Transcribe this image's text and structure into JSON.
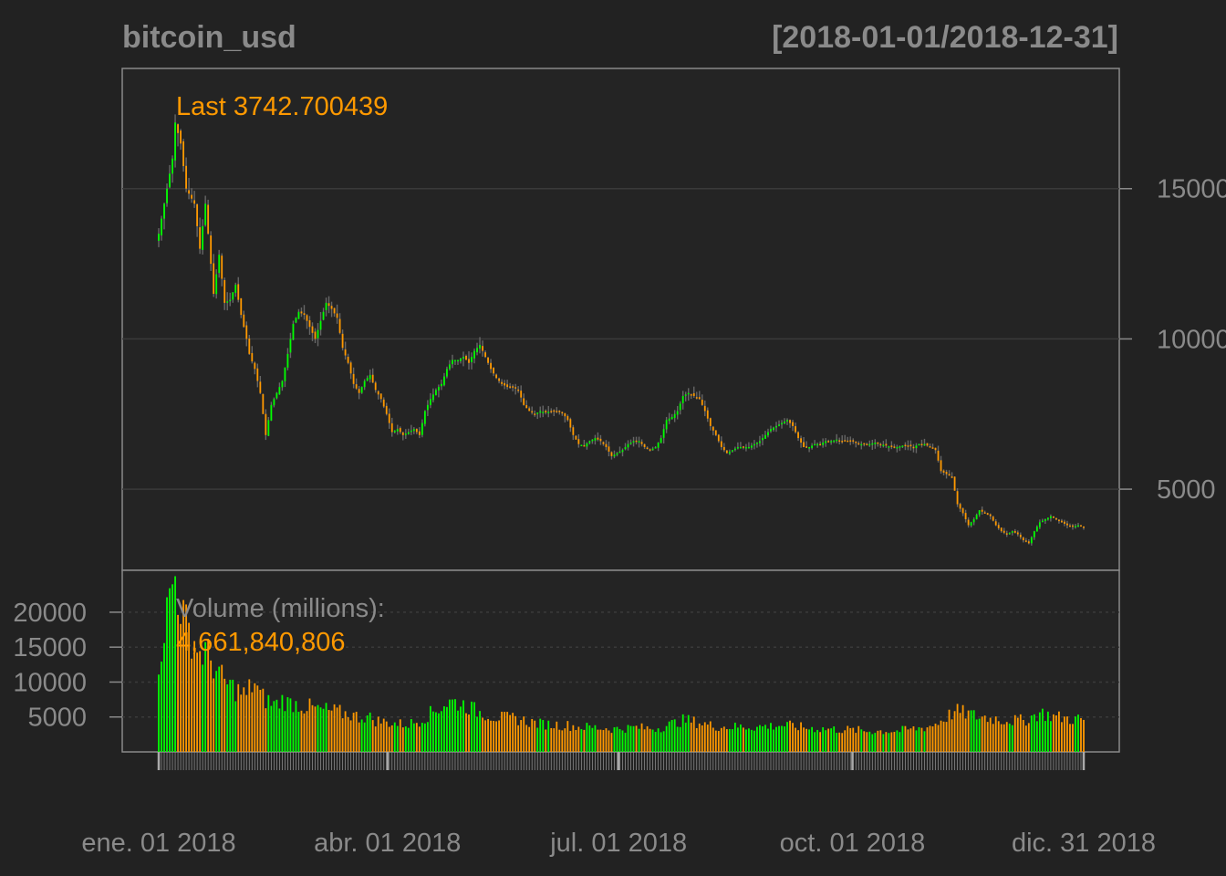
{
  "chart_data": {
    "type": "candlestick",
    "title": "bitcoin_usd",
    "date_range": "[2018-01-01/2018-12-31]",
    "last_label": "Last 3742.700439",
    "volume_title": "Volume (millions):",
    "volume_value": "4,661,840,806",
    "price_ylim": [
      2300,
      19000
    ],
    "volume_ylim": [
      0,
      26000
    ],
    "price_ticks": [
      "15000",
      "10000",
      "5000"
    ],
    "price_tick_values": [
      15000,
      10000,
      5000
    ],
    "volume_ticks": [
      "20000",
      "15000",
      "10000",
      "5000"
    ],
    "volume_tick_values": [
      20000,
      15000,
      10000,
      5000
    ],
    "x_tick_labels": [
      "ene. 01 2018",
      "abr. 01 2018",
      "jul. 01 2018",
      "oct. 01 2018",
      "dic. 31 2018"
    ],
    "x_tick_days": [
      0,
      90,
      181,
      273,
      364
    ],
    "up_color": "#00ff00",
    "down_color": "#ff9900",
    "grid": true,
    "price_anchors": [
      [
        0,
        13500
      ],
      [
        3,
        15000
      ],
      [
        5,
        16000
      ],
      [
        6,
        17200
      ],
      [
        8,
        16500
      ],
      [
        10,
        15000
      ],
      [
        13,
        14500
      ],
      [
        15,
        13000
      ],
      [
        17,
        14500
      ],
      [
        20,
        11500
      ],
      [
        22,
        12800
      ],
      [
        24,
        11200
      ],
      [
        26,
        11300
      ],
      [
        28,
        11800
      ],
      [
        30,
        10800
      ],
      [
        32,
        10000
      ],
      [
        33,
        9500
      ],
      [
        35,
        9000
      ],
      [
        37,
        8200
      ],
      [
        39,
        6800
      ],
      [
        41,
        7800
      ],
      [
        43,
        8200
      ],
      [
        45,
        8600
      ],
      [
        47,
        9500
      ],
      [
        49,
        10500
      ],
      [
        51,
        10900
      ],
      [
        53,
        10800
      ],
      [
        55,
        10400
      ],
      [
        57,
        10000
      ],
      [
        59,
        10600
      ],
      [
        61,
        11200
      ],
      [
        63,
        11000
      ],
      [
        65,
        10700
      ],
      [
        67,
        9700
      ],
      [
        69,
        9200
      ],
      [
        71,
        8500
      ],
      [
        73,
        8200
      ],
      [
        75,
        8600
      ],
      [
        77,
        8800
      ],
      [
        79,
        8300
      ],
      [
        81,
        8000
      ],
      [
        83,
        7500
      ],
      [
        85,
        6900
      ],
      [
        87,
        7000
      ],
      [
        89,
        6800
      ],
      [
        91,
        6900
      ],
      [
        93,
        7000
      ],
      [
        95,
        6800
      ],
      [
        97,
        7600
      ],
      [
        99,
        8000
      ],
      [
        101,
        8300
      ],
      [
        103,
        8500
      ],
      [
        105,
        9000
      ],
      [
        107,
        9300
      ],
      [
        109,
        9300
      ],
      [
        111,
        9400
      ],
      [
        113,
        9200
      ],
      [
        115,
        9600
      ],
      [
        117,
        9800
      ],
      [
        119,
        9400
      ],
      [
        121,
        9000
      ],
      [
        123,
        8700
      ],
      [
        125,
        8500
      ],
      [
        127,
        8400
      ],
      [
        129,
        8400
      ],
      [
        131,
        8300
      ],
      [
        133,
        7800
      ],
      [
        135,
        7600
      ],
      [
        137,
        7500
      ],
      [
        139,
        7600
      ],
      [
        141,
        7550
      ],
      [
        143,
        7600
      ],
      [
        145,
        7600
      ],
      [
        147,
        7550
      ],
      [
        149,
        7300
      ],
      [
        151,
        6800
      ],
      [
        153,
        6500
      ],
      [
        155,
        6450
      ],
      [
        157,
        6600
      ],
      [
        159,
        6700
      ],
      [
        161,
        6600
      ],
      [
        163,
        6400
      ],
      [
        165,
        6100
      ],
      [
        167,
        6200
      ],
      [
        169,
        6300
      ],
      [
        171,
        6500
      ],
      [
        173,
        6600
      ],
      [
        175,
        6600
      ],
      [
        177,
        6400
      ],
      [
        179,
        6300
      ],
      [
        181,
        6400
      ],
      [
        183,
        6700
      ],
      [
        185,
        7300
      ],
      [
        187,
        7400
      ],
      [
        189,
        7600
      ],
      [
        191,
        8100
      ],
      [
        193,
        8200
      ],
      [
        195,
        8100
      ],
      [
        197,
        8000
      ],
      [
        199,
        7600
      ],
      [
        201,
        7100
      ],
      [
        203,
        6800
      ],
      [
        205,
        6400
      ],
      [
        207,
        6200
      ],
      [
        209,
        6300
      ],
      [
        211,
        6400
      ],
      [
        213,
        6400
      ],
      [
        215,
        6400
      ],
      [
        217,
        6500
      ],
      [
        219,
        6600
      ],
      [
        221,
        6800
      ],
      [
        223,
        7000
      ],
      [
        225,
        7100
      ],
      [
        227,
        7200
      ],
      [
        229,
        7300
      ],
      [
        231,
        7100
      ],
      [
        233,
        6700
      ],
      [
        235,
        6400
      ],
      [
        237,
        6400
      ],
      [
        239,
        6500
      ],
      [
        241,
        6500
      ],
      [
        243,
        6600
      ],
      [
        245,
        6600
      ],
      [
        247,
        6650
      ],
      [
        249,
        6600
      ],
      [
        251,
        6600
      ],
      [
        253,
        6600
      ],
      [
        255,
        6500
      ],
      [
        257,
        6500
      ],
      [
        259,
        6500
      ],
      [
        261,
        6550
      ],
      [
        263,
        6500
      ],
      [
        265,
        6450
      ],
      [
        267,
        6400
      ],
      [
        269,
        6400
      ],
      [
        271,
        6450
      ],
      [
        273,
        6450
      ],
      [
        275,
        6400
      ],
      [
        277,
        6500
      ],
      [
        279,
        6500
      ],
      [
        281,
        6400
      ],
      [
        283,
        6300
      ],
      [
        285,
        5600
      ],
      [
        287,
        5500
      ],
      [
        289,
        5400
      ],
      [
        291,
        4500
      ],
      [
        293,
        4200
      ],
      [
        295,
        3800
      ],
      [
        297,
        4000
      ],
      [
        299,
        4300
      ],
      [
        301,
        4200
      ],
      [
        303,
        4100
      ],
      [
        305,
        3800
      ],
      [
        307,
        3600
      ],
      [
        309,
        3500
      ],
      [
        311,
        3600
      ],
      [
        313,
        3500
      ],
      [
        315,
        3300
      ],
      [
        317,
        3200
      ],
      [
        319,
        3600
      ],
      [
        321,
        3900
      ],
      [
        323,
        4000
      ],
      [
        325,
        4100
      ],
      [
        327,
        4000
      ],
      [
        329,
        3900
      ],
      [
        331,
        3800
      ],
      [
        333,
        3750
      ],
      [
        335,
        3800
      ],
      [
        337,
        3742
      ]
    ],
    "volume_anchors": [
      [
        0,
        13000
      ],
      [
        3,
        20000
      ],
      [
        5,
        24000
      ],
      [
        6,
        25000
      ],
      [
        8,
        21000
      ],
      [
        10,
        18000
      ],
      [
        13,
        16000
      ],
      [
        15,
        14000
      ],
      [
        17,
        14500
      ],
      [
        20,
        12500
      ],
      [
        22,
        11000
      ],
      [
        24,
        10000
      ],
      [
        26,
        9500
      ],
      [
        28,
        9000
      ],
      [
        30,
        8500
      ],
      [
        32,
        8000
      ],
      [
        33,
        9000
      ],
      [
        35,
        10000
      ],
      [
        37,
        8000
      ],
      [
        39,
        7500
      ],
      [
        41,
        7000
      ],
      [
        43,
        6800
      ],
      [
        45,
        7500
      ],
      [
        47,
        7000
      ],
      [
        49,
        7000
      ],
      [
        51,
        6800
      ],
      [
        53,
        6500
      ],
      [
        55,
        6400
      ],
      [
        57,
        6200
      ],
      [
        59,
        6000
      ],
      [
        61,
        6000
      ],
      [
        63,
        5800
      ],
      [
        65,
        5800
      ],
      [
        67,
        5500
      ],
      [
        69,
        5500
      ],
      [
        71,
        5200
      ],
      [
        73,
        5000
      ],
      [
        75,
        5100
      ],
      [
        77,
        4900
      ],
      [
        79,
        4500
      ],
      [
        81,
        4400
      ],
      [
        83,
        4200
      ],
      [
        85,
        4200
      ],
      [
        87,
        4000
      ],
      [
        89,
        4000
      ],
      [
        91,
        4000
      ],
      [
        93,
        4200
      ],
      [
        95,
        4500
      ],
      [
        97,
        5000
      ],
      [
        99,
        5500
      ],
      [
        101,
        6000
      ],
      [
        103,
        6500
      ],
      [
        105,
        7000
      ],
      [
        107,
        7200
      ],
      [
        109,
        7000
      ],
      [
        111,
        6800
      ],
      [
        113,
        6500
      ],
      [
        115,
        6000
      ],
      [
        117,
        5700
      ],
      [
        119,
        5500
      ],
      [
        121,
        5200
      ],
      [
        123,
        5000
      ],
      [
        125,
        4900
      ],
      [
        127,
        4800
      ],
      [
        129,
        4800
      ],
      [
        131,
        4700
      ],
      [
        133,
        4500
      ],
      [
        135,
        4300
      ],
      [
        137,
        4200
      ],
      [
        139,
        4000
      ],
      [
        141,
        4000
      ],
      [
        143,
        3900
      ],
      [
        145,
        3900
      ],
      [
        147,
        3800
      ],
      [
        149,
        3800
      ],
      [
        151,
        3700
      ],
      [
        153,
        3600
      ],
      [
        155,
        3600
      ],
      [
        157,
        3500
      ],
      [
        159,
        3500
      ],
      [
        161,
        3400
      ],
      [
        163,
        3400
      ],
      [
        165,
        3300
      ],
      [
        167,
        3300
      ],
      [
        169,
        3400
      ],
      [
        171,
        3400
      ],
      [
        173,
        3500
      ],
      [
        175,
        3500
      ],
      [
        177,
        3400
      ],
      [
        179,
        3400
      ],
      [
        181,
        3400
      ],
      [
        183,
        3500
      ],
      [
        185,
        3800
      ],
      [
        187,
        4000
      ],
      [
        189,
        4300
      ],
      [
        191,
        4500
      ],
      [
        193,
        4500
      ],
      [
        195,
        4300
      ],
      [
        197,
        4200
      ],
      [
        199,
        4000
      ],
      [
        201,
        3800
      ],
      [
        203,
        3700
      ],
      [
        205,
        3600
      ],
      [
        207,
        3600
      ],
      [
        209,
        3600
      ],
      [
        211,
        3600
      ],
      [
        213,
        3600
      ],
      [
        215,
        3600
      ],
      [
        217,
        3600
      ],
      [
        219,
        3600
      ],
      [
        221,
        3700
      ],
      [
        223,
        3700
      ],
      [
        225,
        3800
      ],
      [
        227,
        3800
      ],
      [
        229,
        3800
      ],
      [
        231,
        3700
      ],
      [
        233,
        3600
      ],
      [
        235,
        3500
      ],
      [
        237,
        3400
      ],
      [
        239,
        3400
      ],
      [
        241,
        3300
      ],
      [
        243,
        3300
      ],
      [
        245,
        3300
      ],
      [
        247,
        3200
      ],
      [
        249,
        3200
      ],
      [
        251,
        3200
      ],
      [
        253,
        3100
      ],
      [
        255,
        3100
      ],
      [
        257,
        3000
      ],
      [
        259,
        3000
      ],
      [
        261,
        3000
      ],
      [
        263,
        3000
      ],
      [
        265,
        3000
      ],
      [
        267,
        3000
      ],
      [
        269,
        3000
      ],
      [
        271,
        3100
      ],
      [
        273,
        3200
      ],
      [
        275,
        3300
      ],
      [
        277,
        3400
      ],
      [
        279,
        3500
      ],
      [
        281,
        3700
      ],
      [
        283,
        4000
      ],
      [
        285,
        4500
      ],
      [
        287,
        5000
      ],
      [
        289,
        5500
      ],
      [
        291,
        5800
      ],
      [
        293,
        5600
      ],
      [
        295,
        5500
      ],
      [
        297,
        5200
      ],
      [
        299,
        5000
      ],
      [
        301,
        5000
      ],
      [
        303,
        4800
      ],
      [
        305,
        4800
      ],
      [
        307,
        4600
      ],
      [
        309,
        4600
      ],
      [
        311,
        4500
      ],
      [
        313,
        4500
      ],
      [
        315,
        4500
      ],
      [
        317,
        4800
      ],
      [
        319,
        5200
      ],
      [
        321,
        5600
      ],
      [
        323,
        5400
      ],
      [
        325,
        5200
      ],
      [
        327,
        5000
      ],
      [
        329,
        4900
      ],
      [
        331,
        4800
      ],
      [
        333,
        4700
      ],
      [
        335,
        4700
      ],
      [
        337,
        4600
      ]
    ]
  }
}
